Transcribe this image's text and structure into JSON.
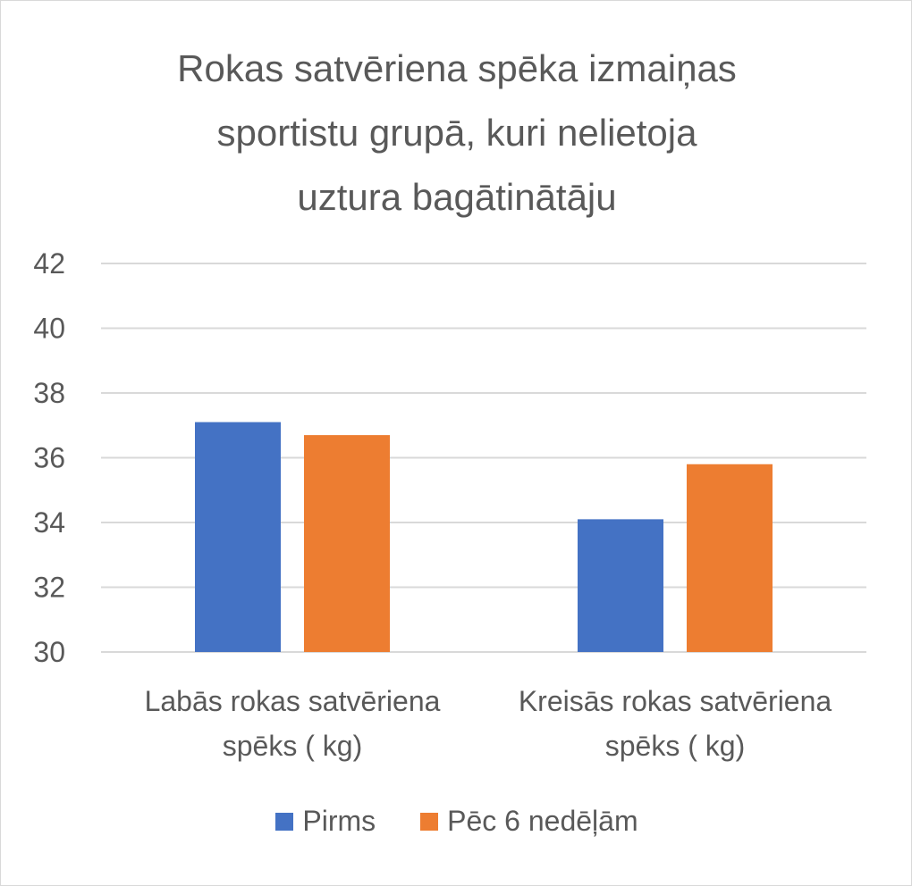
{
  "chart_data": {
    "type": "bar",
    "title_lines": [
      "Rokas satvēriena spēka izmaiņas",
      "sportistu grupā, kuri nelietoja",
      "uztura bagātinātāju"
    ],
    "categories": [
      [
        "Labās rokas satvēriena",
        "spēks ( kg)"
      ],
      [
        "Kreisās rokas satvēriena",
        "spēks ( kg)"
      ]
    ],
    "series": [
      {
        "name": "Pirms",
        "color": "#4472c4",
        "values": [
          37.1,
          34.1
        ]
      },
      {
        "name": "Pēc 6 nedēļām",
        "color": "#ed7d31",
        "values": [
          36.7,
          35.8
        ]
      }
    ],
    "ylim": [
      30,
      42
    ],
    "yticks": [
      "30",
      "32",
      "34",
      "36",
      "38",
      "40",
      "42"
    ],
    "grid": true,
    "legend_position": "bottom",
    "xlabel": "",
    "ylabel": ""
  }
}
